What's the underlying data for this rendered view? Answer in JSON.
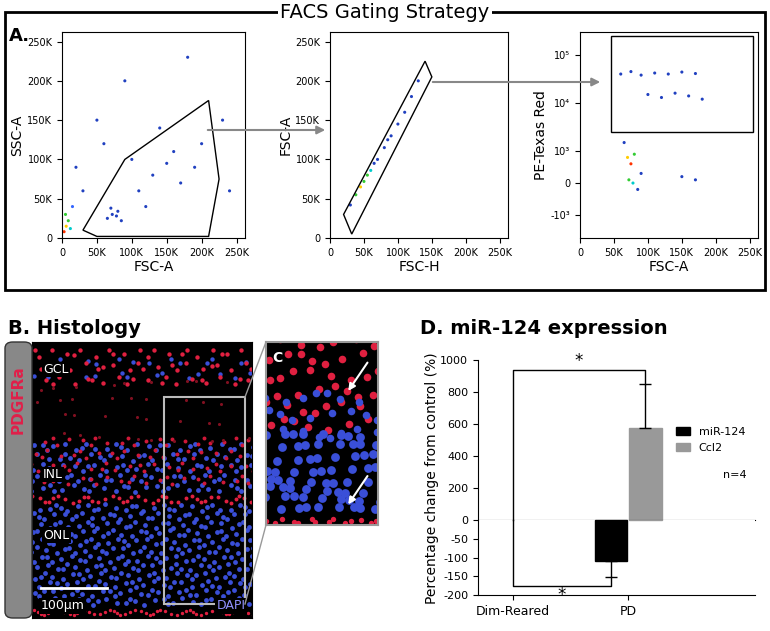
{
  "title": "FACS Gating Strategy",
  "chart_data": [
    {
      "type": "scatter",
      "panel": "A.",
      "x_label": "FSC-A",
      "y_label": "SSC-A",
      "x": [
        3000,
        6000,
        9000,
        5000,
        12000,
        15000,
        65000,
        72000,
        78000,
        85000,
        70000,
        80000,
        110000,
        130000,
        150000,
        170000,
        160000,
        190000,
        120000,
        140000,
        200000,
        100000,
        30000,
        20000,
        50000,
        90000,
        180000,
        230000,
        240000,
        60000
      ],
      "y": [
        8000,
        15000,
        22000,
        30000,
        12000,
        40000,
        25000,
        30000,
        28000,
        22000,
        38000,
        34000,
        60000,
        80000,
        95000,
        70000,
        110000,
        90000,
        40000,
        140000,
        120000,
        100000,
        60000,
        90000,
        150000,
        200000,
        230000,
        150000,
        60000,
        120000
      ],
      "colors": [
        "#ff3300",
        "#ffcc00",
        "#33cc33",
        "#33cc33",
        "#00cccc",
        "#3366ff",
        "#2040c0",
        "#2040c0",
        "#2040c0",
        "#2040c0",
        "#2040c0",
        "#2040c0",
        "#2040c0",
        "#2040c0",
        "#2040c0",
        "#2040c0",
        "#2040c0",
        "#2040c0",
        "#2040c0",
        "#2040c0",
        "#2040c0",
        "#2040c0",
        "#2040c0",
        "#2040c0",
        "#2040c0",
        "#2040c0",
        "#2040c0",
        "#2040c0",
        "#2040c0",
        "#2040c0"
      ],
      "gate": [
        [
          30000,
          10000
        ],
        [
          90000,
          100000
        ],
        [
          210000,
          175000
        ],
        [
          225000,
          75000
        ],
        [
          210000,
          2000
        ],
        [
          50000,
          2000
        ]
      ],
      "xlim": [
        0,
        262144
      ],
      "ylim": [
        0,
        262144
      ],
      "xticks": [
        0,
        {
          "value": 50000,
          "label": "50K"
        },
        {
          "value": 100000,
          "label": "100K"
        },
        {
          "value": 150000,
          "label": "150K"
        },
        {
          "value": 200000,
          "label": "200K"
        },
        {
          "value": 250000,
          "label": "250K"
        }
      ],
      "yticks": [
        0,
        {
          "value": 50000,
          "label": "50K"
        },
        {
          "value": 100000,
          "label": "100K"
        },
        {
          "value": 150000,
          "label": "150K"
        },
        {
          "value": 200000,
          "label": "200K"
        },
        {
          "value": 250000,
          "label": "250K"
        }
      ]
    },
    {
      "type": "scatter",
      "x_label": "FSC-H",
      "y_label": "FSC-A",
      "x": [
        30000,
        38000,
        45000,
        50000,
        55000,
        60000,
        65000,
        70000,
        80000,
        85000,
        90000,
        100000,
        110000,
        120000,
        130000
      ],
      "y": [
        42000,
        55000,
        65000,
        72000,
        80000,
        86000,
        95000,
        100000,
        115000,
        125000,
        130000,
        145000,
        160000,
        180000,
        200000
      ],
      "colors": [
        "#2040c0",
        "#33cc33",
        "#ffcc00",
        "#33cc33",
        "#33cc33",
        "#00cccc",
        "#2040c0",
        "#2040c0",
        "#2040c0",
        "#2040c0",
        "#2040c0",
        "#2040c0",
        "#2040c0",
        "#2040c0",
        "#2040c0"
      ],
      "gate": [
        [
          20000,
          30000
        ],
        [
          32000,
          5000
        ],
        [
          150000,
          205000
        ],
        [
          140000,
          225000
        ]
      ],
      "xlim": [
        0,
        262144
      ],
      "ylim": [
        0,
        262144
      ],
      "xticks": [
        0,
        {
          "value": 50000,
          "label": "50K"
        },
        {
          "value": 100000,
          "label": "100K"
        },
        {
          "value": 150000,
          "label": "150K"
        },
        {
          "value": 200000,
          "label": "200K"
        },
        {
          "value": 250000,
          "label": "250K"
        }
      ],
      "yticks": [
        0,
        {
          "value": 50000,
          "label": "50K"
        },
        {
          "value": 100000,
          "label": "100K"
        },
        {
          "value": 150000,
          "label": "150K"
        },
        {
          "value": 200000,
          "label": "200K"
        },
        {
          "value": 250000,
          "label": "250K"
        }
      ]
    },
    {
      "type": "scatter",
      "x_label": "FSC-A",
      "y_label": "PE-Texas Red",
      "log": "y",
      "x": [
        60000,
        75000,
        90000,
        110000,
        130000,
        150000,
        170000,
        100000,
        120000,
        140000,
        160000,
        180000,
        70000,
        75000,
        80000,
        72000,
        78000,
        85000,
        65000,
        90000,
        150000,
        170000
      ],
      "y": [
        40000,
        45000,
        38000,
        42000,
        40000,
        44000,
        41000,
        15000,
        13000,
        16000,
        14000,
        12000,
        800,
        600,
        900,
        100,
        0,
        -200,
        1500,
        300,
        200,
        100
      ],
      "colors": [
        "#2040c0",
        "#2040c0",
        "#2040c0",
        "#2040c0",
        "#2040c0",
        "#2040c0",
        "#2040c0",
        "#2040c0",
        "#2040c0",
        "#2040c0",
        "#2040c0",
        "#2040c0",
        "#ffcc00",
        "#ff3300",
        "#33cc33",
        "#33cc33",
        "#00cccc",
        "#2040c0",
        "#2040c0",
        "#2040c0",
        "#2040c0",
        "#2040c0"
      ],
      "gate": [
        [
          45000,
          2500
        ],
        [
          255000,
          2500
        ],
        [
          255000,
          250000
        ],
        [
          45000,
          250000
        ]
      ],
      "xlim": [
        0,
        262144
      ],
      "ylim": [
        -3000,
        300000
      ],
      "xticks": [
        0,
        {
          "value": 50000,
          "label": "50K"
        },
        {
          "value": 100000,
          "label": "100K"
        },
        {
          "value": 150000,
          "label": "150K"
        },
        {
          "value": 200000,
          "label": "200K"
        },
        {
          "value": 250000,
          "label": "250K"
        }
      ],
      "yticks": [
        {
          "value": -1000,
          "label": "-10³"
        },
        0,
        {
          "value": 1000,
          "label": "10³"
        },
        {
          "value": 10000,
          "label": "10⁴"
        },
        {
          "value": 100000,
          "label": "10⁵"
        }
      ]
    },
    {
      "type": "bar",
      "title": "D. miR-124 expression",
      "y_label": "Percentage change from control (%)",
      "categories": [
        "Dim-Reared",
        "PD"
      ],
      "series": [
        {
          "name": "miR-124",
          "color": "#000000",
          "values": [
            null,
            -108
          ],
          "errors": [
            null,
            43
          ]
        },
        {
          "name": "Ccl2",
          "color": "#999999",
          "values": [
            null,
            578
          ],
          "errors": [
            null,
            272
          ]
        }
      ],
      "ylim": [
        -200,
        1000
      ],
      "yticks": [
        -200,
        -150,
        -100,
        -50,
        0,
        200,
        400,
        600,
        800,
        1000
      ],
      "legend": "center right",
      "annotations": [
        "n=4"
      ],
      "significance": [
        {
          "from": "Dim-Reared",
          "to": "Ccl2",
          "y": 940,
          "label": "*"
        },
        {
          "from": "Dim-Reared",
          "to": "miR-124",
          "y": -175,
          "label": "*"
        }
      ]
    }
  ],
  "histology": {
    "title": "B. Histology",
    "antibody": "PDGFRa",
    "counterstain": "DAPI",
    "layers": [
      "GCL",
      "INL",
      "ONL"
    ],
    "scale_bar": "100µm",
    "inset": "C"
  }
}
